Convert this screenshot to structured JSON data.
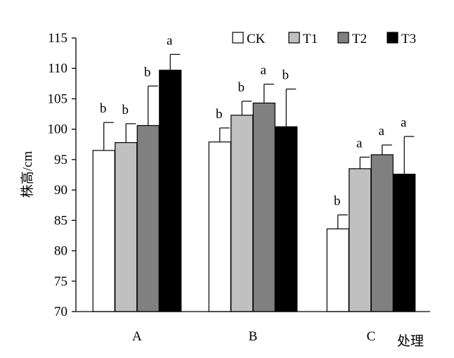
{
  "chart_data": {
    "type": "bar",
    "title": "",
    "xlabel": "处理",
    "ylabel": "株高/cm",
    "ylim": [
      70,
      115
    ],
    "yticks": [
      70,
      75,
      80,
      85,
      90,
      95,
      100,
      105,
      110,
      115
    ],
    "categories": [
      "A",
      "B",
      "C"
    ],
    "grid": false,
    "legend_position": "top-right",
    "series": [
      {
        "name": "CK",
        "color": "#ffffff",
        "values": [
          96.5,
          97.9,
          83.6
        ],
        "errors": [
          4.6,
          2.3,
          2.3
        ],
        "labels": [
          "b",
          "b",
          "b"
        ]
      },
      {
        "name": "T1",
        "color": "#c0c0c0",
        "values": [
          97.8,
          102.3,
          93.5
        ],
        "errors": [
          3.1,
          2.3,
          1.9
        ],
        "labels": [
          "b",
          "b",
          "a"
        ]
      },
      {
        "name": "T2",
        "color": "#808080",
        "values": [
          100.6,
          104.3,
          95.8
        ],
        "errors": [
          6.5,
          3.1,
          1.6
        ],
        "labels": [
          "b",
          "a",
          "a"
        ]
      },
      {
        "name": "T3",
        "color": "#000000",
        "values": [
          109.7,
          100.4,
          92.6
        ],
        "errors": [
          2.6,
          6.2,
          6.2
        ],
        "labels": [
          "a",
          "b",
          "a"
        ]
      }
    ]
  }
}
